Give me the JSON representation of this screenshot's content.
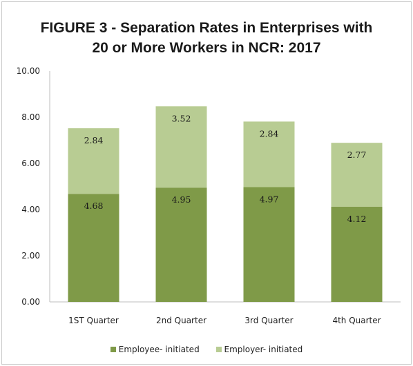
{
  "chart_data": {
    "type": "bar",
    "stacked": true,
    "title_lines": [
      "FIGURE 3 - Separation Rates in Enterprises with",
      "20 or More Workers in NCR: 2017"
    ],
    "categories": [
      "1ST Quarter",
      "2nd Quarter",
      "3rd Quarter",
      "4th Quarter"
    ],
    "series": [
      {
        "name": "Employee- initiated",
        "values": [
          4.68,
          4.95,
          4.97,
          4.12
        ],
        "color": "#7f9a48"
      },
      {
        "name": "Employer- initiated",
        "values": [
          2.84,
          3.52,
          2.84,
          2.77
        ],
        "color": "#b8cc93"
      }
    ],
    "value_labels": [
      [
        "4.68",
        "4.95",
        "4.97",
        "4.12"
      ],
      [
        "2.84",
        "3.52",
        "2.84",
        "2.77"
      ]
    ],
    "ylim": [
      0,
      10
    ],
    "yticks": [
      "0.00",
      "2.00",
      "4.00",
      "6.00",
      "8.00",
      "10.00"
    ],
    "ytick_values": [
      0,
      2,
      4,
      6,
      8,
      10
    ],
    "xlabel": "",
    "ylabel": "",
    "grid": false,
    "legend_position": "bottom"
  }
}
